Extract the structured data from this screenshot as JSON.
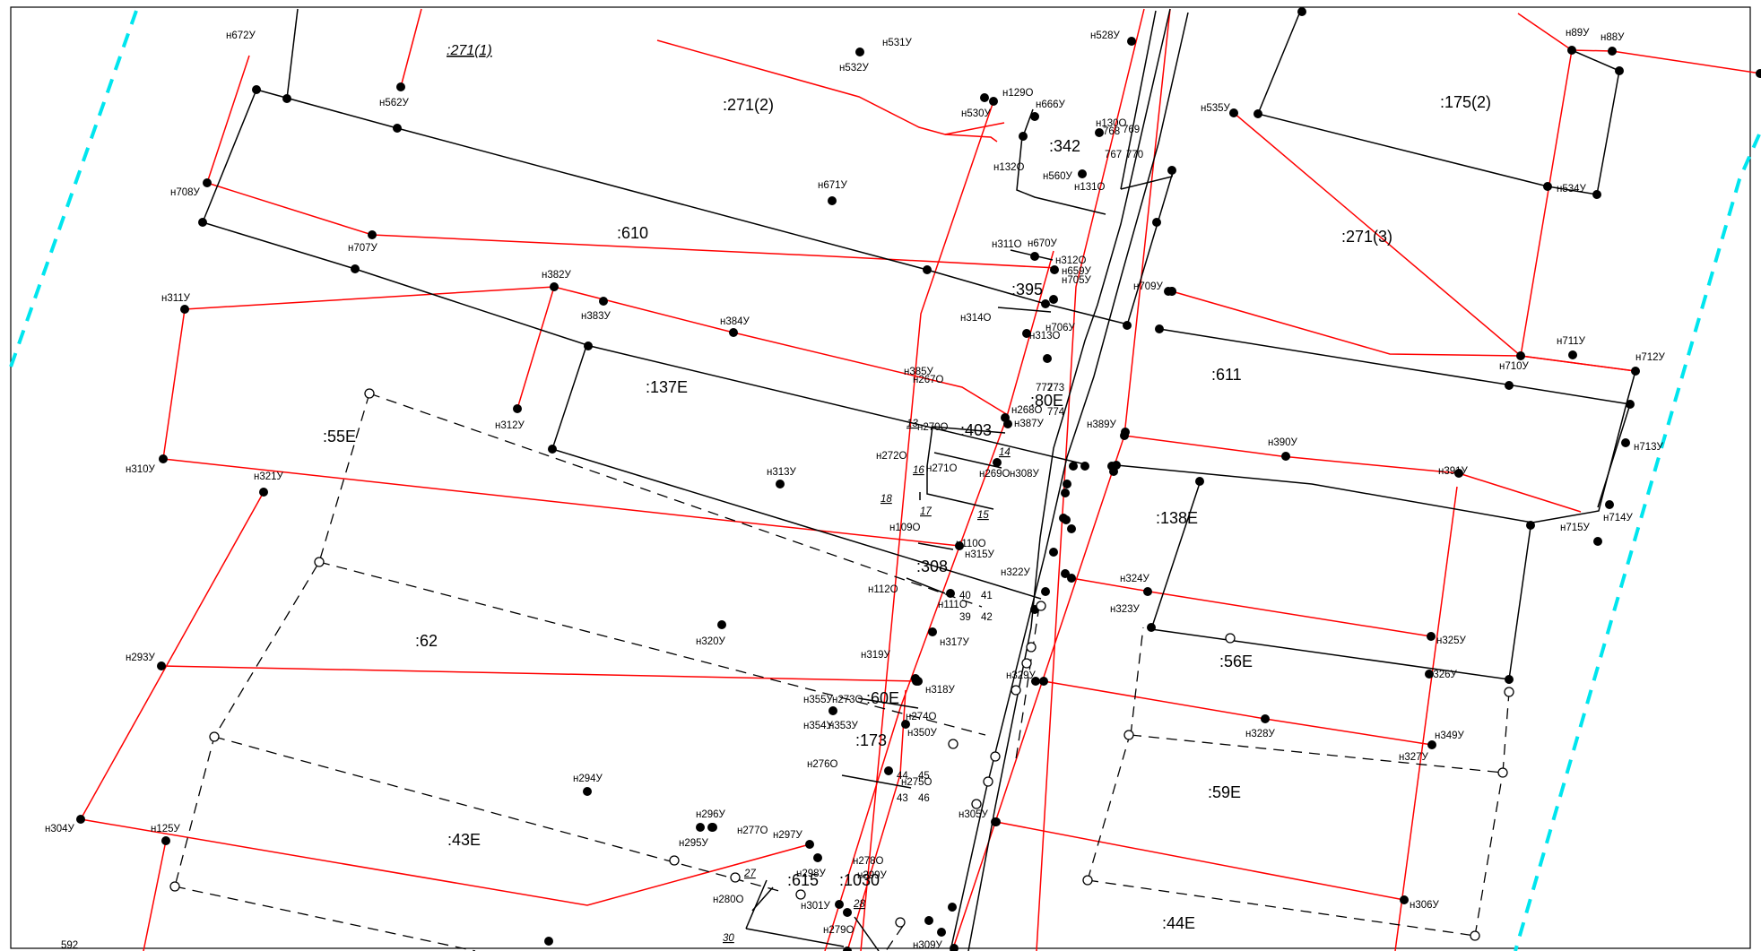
{
  "map": {
    "parcels": [
      ":271(1)",
      ":271(2)",
      ":175(2)",
      ":342",
      ":610",
      ":271(3)",
      ":395",
      ":137E",
      ":611",
      ":80E",
      ":403",
      ":55E",
      ":138E",
      ":308",
      ":62",
      ":56E",
      ":60E",
      ":173",
      ":59E",
      ":43E",
      ":615",
      ":1030",
      ":44E"
    ],
    "points": [
      "н672У",
      "н562У",
      "н531У",
      "н532У",
      "н528У",
      "н89У",
      "н88У",
      "н708У",
      "н129О",
      "н666У",
      "н530У",
      "н535У",
      "н130О",
      "н132О",
      "н560У",
      "н131О",
      "н534У",
      "н671У",
      "н707У",
      "н311О",
      "н670У",
      "н312О",
      "н659У",
      "н705У",
      "н382У",
      "н383У",
      "н384У",
      "н314О",
      "н313О",
      "н706У",
      "н709У",
      "н311У",
      "н710У",
      "н711У",
      "н712У",
      "н385У",
      "н267О",
      "н268О",
      "н387У",
      "н312У",
      "н389У",
      "н270О",
      "н272О",
      "н271О",
      "н269О",
      "н308У",
      "н390У",
      "н713У",
      "н310У",
      "н321У",
      "н313У",
      "н391У",
      "н109О",
      "н110О",
      "н315У",
      "н715У",
      "н714У",
      "н322У",
      "н324У",
      "н112О",
      "н111О",
      "н323У",
      "н320У",
      "н317У",
      "н325У",
      "н293У",
      "н319У",
      "н318У",
      "н329У",
      "н326У",
      "н355У",
      "н273О",
      "н354У",
      "н353У",
      "н274О",
      "н350У",
      "н328У",
      "н349У",
      "н276О",
      "н275О",
      "н327У",
      "н294У",
      "н305У",
      "н296У",
      "н295У",
      "н277О",
      "н297У",
      "н304У",
      "н125У",
      "н278О",
      "н298У",
      "н299У",
      "н280О",
      "н301У",
      "н279О",
      "н306У",
      "н309У"
    ],
    "vertex_numbers": [
      "768",
      "769",
      "767",
      "770",
      "772",
      "773",
      "774",
      "13",
      "14",
      "16",
      "17",
      "18",
      "15",
      "40",
      "41",
      "39",
      "42",
      "44",
      "45",
      "43",
      "46",
      "27",
      "28",
      "30"
    ],
    "other_numbers": [
      "592"
    ]
  }
}
